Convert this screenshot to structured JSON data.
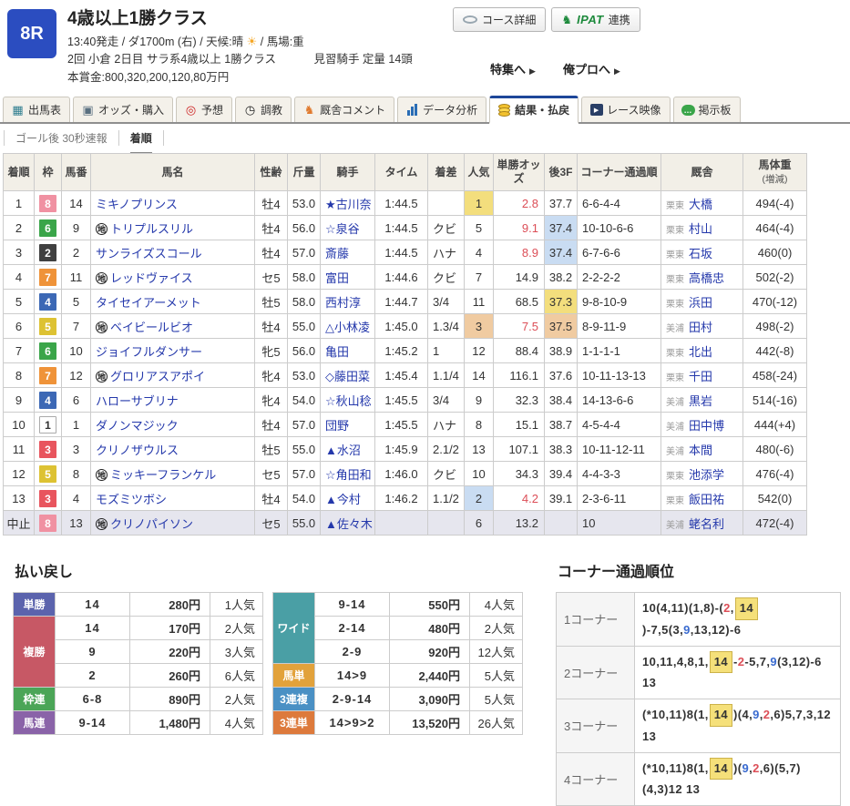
{
  "header": {
    "race_number": "8R",
    "title": "4歳以上1勝クラス",
    "meta1_left": "13:40発走 / ダ1700m (右) / 天候:晴",
    "sun_icon": "☀",
    "meta1_right": "/ 馬場:重",
    "meta2_left": "2回 小倉 2日目 サラ系4歳以上 1勝クラス",
    "meta2_right": "見習騎手 定量 14頭",
    "meta3": "本賞金:800,320,200,120,80万円",
    "course_button": "コース詳細",
    "ipat_logo": "IPAT",
    "ipat_label": "連携",
    "links": [
      {
        "label": "特集へ",
        "name": "feature-link"
      },
      {
        "label": "俺プロへ",
        "name": "orepro-link"
      }
    ],
    "colors": {
      "race_box": "#2b4dc0",
      "ipat_green": "#1d8a3c",
      "active_tab": "#1d4699"
    }
  },
  "tabs": [
    {
      "label": "出馬表",
      "name": "tab-entry-table",
      "icon": "entry-table-icon",
      "active": false
    },
    {
      "label": "オッズ・購入",
      "name": "tab-odds-purchase",
      "icon": "odds-icon",
      "active": false
    },
    {
      "label": "予想",
      "name": "tab-prediction",
      "icon": "prediction-icon",
      "active": false
    },
    {
      "label": "調教",
      "name": "tab-training",
      "icon": "training-icon",
      "active": false
    },
    {
      "label": "厩舎コメント",
      "name": "tab-stable-comments",
      "icon": "stable-comment-icon",
      "active": false
    },
    {
      "label": "データ分析",
      "name": "tab-data-analysis",
      "icon": "data-analysis-icon",
      "active": false
    },
    {
      "label": "結果・払戻",
      "name": "tab-results-payout",
      "icon": "result-payout-icon",
      "active": true
    },
    {
      "label": "レース映像",
      "name": "tab-race-video",
      "icon": "race-video-icon",
      "active": false
    },
    {
      "label": "掲示板",
      "name": "tab-board",
      "icon": "board-icon",
      "active": false
    }
  ],
  "subtabs": [
    {
      "label": "ゴール後 30秒速報",
      "name": "subtab-goal-flash",
      "active": false
    },
    {
      "label": "着順",
      "name": "subtab-finish-order",
      "active": true
    }
  ],
  "results": {
    "columns": [
      {
        "label": "着順"
      },
      {
        "label": "枠"
      },
      {
        "label": "馬番"
      },
      {
        "label": "馬名"
      },
      {
        "label": "性齢"
      },
      {
        "label": "斤量"
      },
      {
        "label": "騎手"
      },
      {
        "label": "タイム"
      },
      {
        "label": "着差"
      },
      {
        "label": "人気"
      },
      {
        "label": "単勝オッズ"
      },
      {
        "label": "後3F"
      },
      {
        "label": "コーナー通過順"
      },
      {
        "label": "厩舎"
      },
      {
        "label": "馬体重",
        "sub": "(増減)"
      }
    ],
    "waku_colors": {
      "1": {
        "bg": "#ffffff",
        "fg": "#333333",
        "border": "#aaaaaa"
      },
      "2": {
        "bg": "#404040",
        "fg": "#ffffff",
        "border": "#404040"
      },
      "3": {
        "bg": "#e8555e",
        "fg": "#ffffff",
        "border": "#e8555e"
      },
      "4": {
        "bg": "#3c68b5",
        "fg": "#ffffff",
        "border": "#3c68b5"
      },
      "5": {
        "bg": "#ddc233",
        "fg": "#ffffff",
        "border": "#ddc233"
      },
      "6": {
        "bg": "#3aa549",
        "fg": "#ffffff",
        "border": "#3aa549"
      },
      "7": {
        "bg": "#ef9339",
        "fg": "#ffffff",
        "border": "#ef9339"
      },
      "8": {
        "bg": "#f091a2",
        "fg": "#ffffff",
        "border": "#f091a2"
      }
    },
    "highlight_colors": {
      "1": "#f3de7d",
      "2": "#c9dcf2",
      "3": "#f0cba1"
    },
    "odds_red": "#dc4e57",
    "rows": [
      {
        "pos": "1",
        "waku": "8",
        "num": "14",
        "mark": "",
        "name": "ミキノプリンス",
        "sexage": "牡4",
        "weight": "53.0",
        "jockey": "★古川奈",
        "time": "1:44.5",
        "margin": "",
        "pop": "1",
        "pop_hl": "1",
        "odds": "2.8",
        "odds_red": true,
        "last3f": "37.7",
        "last3f_hl": "",
        "corners": "6-6-4-4",
        "region": "栗東",
        "trainer": "大橋",
        "hweight": "494(-4)",
        "canceled": false
      },
      {
        "pos": "2",
        "waku": "6",
        "num": "9",
        "mark": "地",
        "name": "トリプルスリル",
        "sexage": "牡4",
        "weight": "56.0",
        "jockey": "☆泉谷",
        "time": "1:44.5",
        "margin": "クビ",
        "pop": "5",
        "pop_hl": "",
        "odds": "9.1",
        "odds_red": true,
        "last3f": "37.4",
        "last3f_hl": "2",
        "corners": "10-10-6-6",
        "region": "栗東",
        "trainer": "村山",
        "hweight": "464(-4)",
        "canceled": false
      },
      {
        "pos": "3",
        "waku": "2",
        "num": "2",
        "mark": "",
        "name": "サンライズスコール",
        "sexage": "牡4",
        "weight": "57.0",
        "jockey": "斎藤",
        "time": "1:44.5",
        "margin": "ハナ",
        "pop": "4",
        "pop_hl": "",
        "odds": "8.9",
        "odds_red": true,
        "last3f": "37.4",
        "last3f_hl": "2",
        "corners": "6-7-6-6",
        "region": "栗東",
        "trainer": "石坂",
        "hweight": "460(0)",
        "canceled": false
      },
      {
        "pos": "4",
        "waku": "7",
        "num": "11",
        "mark": "地",
        "name": "レッドヴァイス",
        "sexage": "セ5",
        "weight": "58.0",
        "jockey": "富田",
        "time": "1:44.6",
        "margin": "クビ",
        "pop": "7",
        "pop_hl": "",
        "odds": "14.9",
        "odds_red": false,
        "last3f": "38.2",
        "last3f_hl": "",
        "corners": "2-2-2-2",
        "region": "栗東",
        "trainer": "高橋忠",
        "hweight": "502(-2)",
        "canceled": false
      },
      {
        "pos": "5",
        "waku": "4",
        "num": "5",
        "mark": "",
        "name": "タイセイアーメット",
        "sexage": "牡5",
        "weight": "58.0",
        "jockey": "西村淳",
        "time": "1:44.7",
        "margin": "3/4",
        "pop": "11",
        "pop_hl": "",
        "odds": "68.5",
        "odds_red": false,
        "last3f": "37.3",
        "last3f_hl": "1",
        "corners": "9-8-10-9",
        "region": "栗東",
        "trainer": "浜田",
        "hweight": "470(-12)",
        "canceled": false
      },
      {
        "pos": "6",
        "waku": "5",
        "num": "7",
        "mark": "地",
        "name": "ベイビールビオ",
        "sexage": "牡4",
        "weight": "55.0",
        "jockey": "△小林凌",
        "time": "1:45.0",
        "margin": "1.3/4",
        "pop": "3",
        "pop_hl": "3",
        "odds": "7.5",
        "odds_red": true,
        "last3f": "37.5",
        "last3f_hl": "3",
        "corners": "8-9-11-9",
        "region": "美浦",
        "trainer": "田村",
        "hweight": "498(-2)",
        "canceled": false
      },
      {
        "pos": "7",
        "waku": "6",
        "num": "10",
        "mark": "",
        "name": "ジョイフルダンサー",
        "sexage": "牝5",
        "weight": "56.0",
        "jockey": "亀田",
        "time": "1:45.2",
        "margin": "1",
        "pop": "12",
        "pop_hl": "",
        "odds": "88.4",
        "odds_red": false,
        "last3f": "38.9",
        "last3f_hl": "",
        "corners": "1-1-1-1",
        "region": "栗東",
        "trainer": "北出",
        "hweight": "442(-8)",
        "canceled": false
      },
      {
        "pos": "8",
        "waku": "7",
        "num": "12",
        "mark": "地",
        "name": "グロリアスアポイ",
        "sexage": "牝4",
        "weight": "53.0",
        "jockey": "◇藤田菜",
        "time": "1:45.4",
        "margin": "1.1/4",
        "pop": "14",
        "pop_hl": "",
        "odds": "116.1",
        "odds_red": false,
        "last3f": "37.6",
        "last3f_hl": "",
        "corners": "10-11-13-13",
        "region": "栗東",
        "trainer": "千田",
        "hweight": "458(-24)",
        "canceled": false
      },
      {
        "pos": "9",
        "waku": "4",
        "num": "6",
        "mark": "",
        "name": "ハローサブリナ",
        "sexage": "牝4",
        "weight": "54.0",
        "jockey": "☆秋山稔",
        "time": "1:45.5",
        "margin": "3/4",
        "pop": "9",
        "pop_hl": "",
        "odds": "32.3",
        "odds_red": false,
        "last3f": "38.4",
        "last3f_hl": "",
        "corners": "14-13-6-6",
        "region": "美浦",
        "trainer": "黒岩",
        "hweight": "514(-16)",
        "canceled": false
      },
      {
        "pos": "10",
        "waku": "1",
        "num": "1",
        "mark": "",
        "name": "ダノンマジック",
        "sexage": "牡4",
        "weight": "57.0",
        "jockey": "団野",
        "time": "1:45.5",
        "margin": "ハナ",
        "pop": "8",
        "pop_hl": "",
        "odds": "15.1",
        "odds_red": false,
        "last3f": "38.7",
        "last3f_hl": "",
        "corners": "4-5-4-4",
        "region": "美浦",
        "trainer": "田中博",
        "hweight": "444(+4)",
        "canceled": false
      },
      {
        "pos": "11",
        "waku": "3",
        "num": "3",
        "mark": "",
        "name": "クリノザウルス",
        "sexage": "牡5",
        "weight": "55.0",
        "jockey": "▲水沼",
        "time": "1:45.9",
        "margin": "2.1/2",
        "pop": "13",
        "pop_hl": "",
        "odds": "107.1",
        "odds_red": false,
        "last3f": "38.3",
        "last3f_hl": "",
        "corners": "10-11-12-11",
        "region": "美浦",
        "trainer": "本間",
        "hweight": "480(-6)",
        "canceled": false
      },
      {
        "pos": "12",
        "waku": "5",
        "num": "8",
        "mark": "地",
        "name": "ミッキーフランケル",
        "sexage": "セ5",
        "weight": "57.0",
        "jockey": "☆角田和",
        "time": "1:46.0",
        "margin": "クビ",
        "pop": "10",
        "pop_hl": "",
        "odds": "34.3",
        "odds_red": false,
        "last3f": "39.4",
        "last3f_hl": "",
        "corners": "4-4-3-3",
        "region": "栗東",
        "trainer": "池添学",
        "hweight": "476(-4)",
        "canceled": false
      },
      {
        "pos": "13",
        "waku": "3",
        "num": "4",
        "mark": "",
        "name": "モズミツボシ",
        "sexage": "牡4",
        "weight": "54.0",
        "jockey": "▲今村",
        "time": "1:46.2",
        "margin": "1.1/2",
        "pop": "2",
        "pop_hl": "2",
        "odds": "4.2",
        "odds_red": true,
        "last3f": "39.1",
        "last3f_hl": "",
        "corners": "2-3-6-11",
        "region": "栗東",
        "trainer": "飯田祐",
        "hweight": "542(0)",
        "canceled": false
      },
      {
        "pos": "中止",
        "waku": "8",
        "num": "13",
        "mark": "地",
        "name": "クリノパイソン",
        "sexage": "セ5",
        "weight": "55.0",
        "jockey": "▲佐々木",
        "time": "",
        "margin": "",
        "pop": "6",
        "pop_hl": "",
        "odds": "13.2",
        "odds_red": false,
        "last3f": "",
        "last3f_hl": "",
        "corners": "10",
        "region": "美浦",
        "trainer": "蛯名利",
        "hweight": "472(-4)",
        "canceled": true
      }
    ]
  },
  "payouts": {
    "title": "払い戻し",
    "left": [
      {
        "type": "単勝",
        "color": "#5b63ad",
        "rows": [
          {
            "combo": "14",
            "amount": "280円",
            "pop": "1人気"
          }
        ]
      },
      {
        "type": "複勝",
        "color": "#c75865",
        "rows": [
          {
            "combo": "14",
            "amount": "170円",
            "pop": "2人気"
          },
          {
            "combo": "9",
            "amount": "220円",
            "pop": "3人気"
          },
          {
            "combo": "2",
            "amount": "260円",
            "pop": "6人気"
          }
        ]
      },
      {
        "type": "枠連",
        "color": "#4ba557",
        "rows": [
          {
            "combo": "6-8",
            "amount": "890円",
            "pop": "2人気"
          }
        ]
      },
      {
        "type": "馬連",
        "color": "#8a63a8",
        "rows": [
          {
            "combo": "9-14",
            "amount": "1,480円",
            "pop": "4人気"
          }
        ]
      }
    ],
    "right": [
      {
        "type": "ワイド",
        "color": "#4a9fa5",
        "rows": [
          {
            "combo": "9-14",
            "amount": "550円",
            "pop": "4人気"
          },
          {
            "combo": "2-14",
            "amount": "480円",
            "pop": "2人気"
          },
          {
            "combo": "2-9",
            "amount": "920円",
            "pop": "12人気"
          }
        ]
      },
      {
        "type": "馬単",
        "color": "#e2a23b",
        "rows": [
          {
            "combo": "14>9",
            "amount": "2,440円",
            "pop": "5人気"
          }
        ]
      },
      {
        "type": "3連複",
        "color": "#4a90c4",
        "rows": [
          {
            "combo": "2-9-14",
            "amount": "3,090円",
            "pop": "5人気"
          }
        ]
      },
      {
        "type": "3連単",
        "color": "#dd7a3c",
        "rows": [
          {
            "combo": "14>9>2",
            "amount": "13,520円",
            "pop": "26人気"
          }
        ]
      }
    ]
  },
  "corner_order": {
    "title": "コーナー通過順位",
    "win_box_color": "#f5e07a",
    "second_color": "#3a6bd0",
    "third_color": "#dc4e57",
    "rows": [
      {
        "label": "1コーナー",
        "tokens": [
          {
            "t": "10(4,11)(1,8)-(",
            "c": ""
          },
          {
            "t": "2",
            "c": "third"
          },
          {
            "t": ",",
            "c": ""
          },
          {
            "t": "14",
            "c": "win"
          },
          {
            "t": ")-7,5(3,",
            "c": ""
          },
          {
            "t": "9",
            "c": "second"
          },
          {
            "t": ",13,12)-6",
            "c": ""
          }
        ]
      },
      {
        "label": "2コーナー",
        "tokens": [
          {
            "t": "10,11,4,8,1,",
            "c": ""
          },
          {
            "t": "14",
            "c": "win"
          },
          {
            "t": "-",
            "c": ""
          },
          {
            "t": "2",
            "c": "third"
          },
          {
            "t": "-5,7,",
            "c": ""
          },
          {
            "t": "9",
            "c": "second"
          },
          {
            "t": "(3,12)-6 13",
            "c": ""
          }
        ]
      },
      {
        "label": "3コーナー",
        "tokens": [
          {
            "t": "(*10,11)8(1,",
            "c": ""
          },
          {
            "t": "14",
            "c": "win"
          },
          {
            "t": ")(4,",
            "c": ""
          },
          {
            "t": "9",
            "c": "second"
          },
          {
            "t": ",",
            "c": ""
          },
          {
            "t": "2",
            "c": "third"
          },
          {
            "t": ",6)5,7,3,12 13",
            "c": ""
          }
        ]
      },
      {
        "label": "4コーナー",
        "tokens": [
          {
            "t": "(*10,11)8(1,",
            "c": ""
          },
          {
            "t": "14",
            "c": "win"
          },
          {
            "t": ")(",
            "c": ""
          },
          {
            "t": "9",
            "c": "second"
          },
          {
            "t": ",",
            "c": ""
          },
          {
            "t": "2",
            "c": "third"
          },
          {
            "t": ",6)(5,7)(4,3)12 13",
            "c": ""
          }
        ]
      }
    ]
  }
}
